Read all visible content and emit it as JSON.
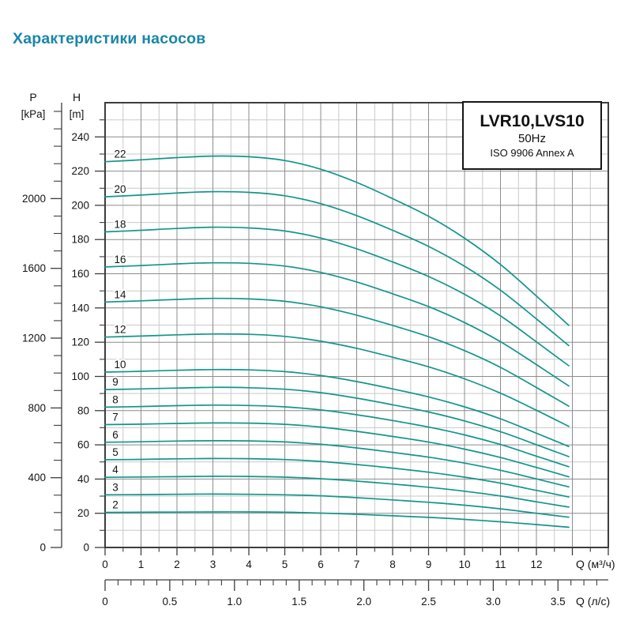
{
  "page_title": "Характеристики насосов",
  "legend": {
    "model": "LVR10,LVS10",
    "frequency": "50Hz",
    "standard": "ISO 9906 Annex A"
  },
  "chart_data": {
    "type": "line",
    "title": "LVR10,LVS10 50Hz",
    "subtitle": "ISO 9906 Annex A",
    "grid": true,
    "legend_position": "top-right",
    "curve_color": "#12968c",
    "accent_color": "#1a86a8",
    "grid_minor_color": "#c9c9c9",
    "grid_major_color": "#8c8c8c",
    "border_color": "#3d3d3d",
    "text_color": "#141414",
    "q_max": 14,
    "h_max": 260,
    "x": [
      0,
      1,
      2,
      3,
      4,
      5,
      6,
      7,
      8,
      9,
      10,
      11,
      12,
      12.9
    ],
    "series": [
      {
        "name": "22",
        "stages": 22,
        "values": [
          225.5,
          226.6,
          227.9,
          228.8,
          228.4,
          226.2,
          221.1,
          213.4,
          203.9,
          193.6,
          180.8,
          165.4,
          147.0,
          129.8
        ]
      },
      {
        "name": "20",
        "stages": 20,
        "values": [
          205.0,
          206.0,
          207.2,
          208.0,
          207.6,
          205.6,
          201.0,
          194.0,
          185.4,
          176.0,
          164.4,
          150.4,
          133.6,
          118.0
        ]
      },
      {
        "name": "18",
        "stages": 18,
        "values": [
          184.5,
          185.4,
          186.5,
          187.2,
          186.8,
          185.0,
          180.9,
          174.6,
          166.9,
          158.4,
          148.0,
          135.4,
          120.2,
          106.2
        ]
      },
      {
        "name": "16",
        "stages": 16,
        "values": [
          164.0,
          164.8,
          165.8,
          166.4,
          166.1,
          164.5,
          160.8,
          155.2,
          148.3,
          140.8,
          131.5,
          120.3,
          106.9,
          94.4
        ]
      },
      {
        "name": "14",
        "stages": 14,
        "values": [
          143.5,
          144.2,
          145.0,
          145.6,
          145.3,
          143.9,
          140.7,
          135.8,
          129.8,
          123.2,
          115.1,
          105.3,
          93.5,
          82.6
        ]
      },
      {
        "name": "12",
        "stages": 12,
        "values": [
          123.0,
          123.6,
          124.3,
          124.8,
          124.6,
          123.4,
          120.6,
          116.4,
          111.2,
          105.6,
          98.6,
          90.2,
          80.2,
          70.8
        ]
      },
      {
        "name": "10",
        "stages": 10,
        "values": [
          102.5,
          103.0,
          103.6,
          104.0,
          103.8,
          102.8,
          100.5,
          97.0,
          92.7,
          88.0,
          82.2,
          75.2,
          66.8,
          59.0
        ]
      },
      {
        "name": "9",
        "stages": 9,
        "values": [
          92.3,
          92.7,
          93.2,
          93.6,
          93.4,
          92.5,
          90.5,
          87.3,
          83.4,
          79.2,
          74.0,
          67.7,
          60.1,
          53.1
        ]
      },
      {
        "name": "8",
        "stages": 8,
        "values": [
          82.0,
          82.4,
          82.9,
          83.2,
          83.0,
          82.2,
          80.4,
          77.6,
          74.2,
          70.4,
          65.8,
          60.2,
          53.4,
          47.2
        ]
      },
      {
        "name": "7",
        "stages": 7,
        "values": [
          71.8,
          72.1,
          72.5,
          72.8,
          72.7,
          72.0,
          70.4,
          67.9,
          64.9,
          61.6,
          57.5,
          52.6,
          46.8,
          41.3
        ]
      },
      {
        "name": "6",
        "stages": 6,
        "values": [
          61.5,
          61.8,
          62.2,
          62.4,
          62.3,
          61.7,
          60.3,
          58.2,
          55.6,
          52.8,
          49.3,
          45.1,
          40.1,
          35.4
        ]
      },
      {
        "name": "5",
        "stages": 5,
        "values": [
          51.3,
          51.5,
          51.8,
          52.0,
          51.9,
          51.4,
          50.3,
          48.5,
          46.4,
          44.0,
          41.1,
          37.6,
          33.4,
          29.5
        ]
      },
      {
        "name": "4",
        "stages": 4,
        "values": [
          41.0,
          41.2,
          41.4,
          41.6,
          41.5,
          41.1,
          40.2,
          38.8,
          37.1,
          35.2,
          32.9,
          30.1,
          26.7,
          23.6
        ]
      },
      {
        "name": "3",
        "stages": 3,
        "values": [
          30.8,
          30.9,
          31.1,
          31.2,
          31.1,
          30.8,
          30.2,
          29.1,
          27.8,
          26.4,
          24.7,
          22.6,
          20.0,
          17.7
        ]
      },
      {
        "name": "2",
        "stages": 2,
        "values": [
          20.5,
          20.6,
          20.7,
          20.8,
          20.8,
          20.6,
          20.1,
          19.4,
          18.5,
          17.6,
          16.4,
          15.0,
          13.4,
          11.8
        ]
      }
    ],
    "y_axis_primary": {
      "title_top": "H",
      "title_unit": "[m]",
      "label_step": 20,
      "label_max": 240,
      "minor_step": 10,
      "minor_max": 250
    },
    "y_axis_secondary": {
      "title_top": "P",
      "title_unit": "[kPa]",
      "label_step": 400,
      "label_max": 2000,
      "minor_step": 100,
      "minor_max": 2500,
      "kpa_per_m": 9.80665
    },
    "x_axis_primary": {
      "title": "Q (м³/ч)",
      "labels": [
        0,
        1,
        2,
        3,
        4,
        5,
        6,
        7,
        8,
        9,
        10,
        11,
        12
      ],
      "minor_step": 0.5,
      "minor_max": 14
    },
    "x_axis_secondary": {
      "title": "Q (л/с)",
      "labels": [
        "0",
        "0.5",
        "1.0",
        "1.5",
        "2.0",
        "2.5",
        "3.0",
        "3.5"
      ],
      "m3h_per_unit": 3.6,
      "minor_step": 0.1,
      "minor_max": 3.8
    }
  }
}
